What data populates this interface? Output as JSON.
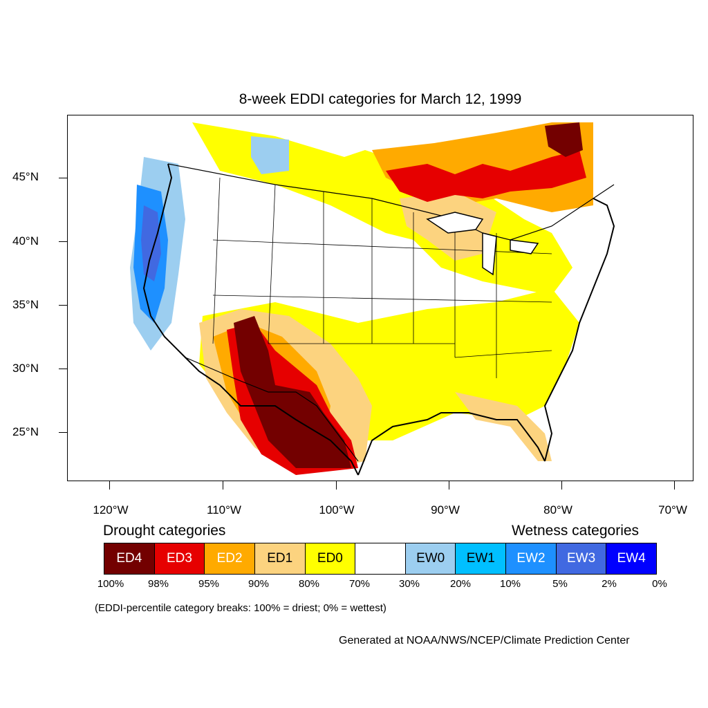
{
  "title": "8-week EDDI categories for March 12, 1999",
  "lat_labels": [
    "45°N",
    "40°N",
    "35°N",
    "30°N",
    "25°N"
  ],
  "lon_labels": [
    "120°W",
    "110°W",
    "100°W",
    "90°W",
    "80°W",
    "70°W"
  ],
  "legend": {
    "drought_heading": "Drought categories",
    "wetness_heading": "Wetness categories",
    "categories": [
      {
        "label": "ED4",
        "color": "#730000",
        "text_color": "#ffffff"
      },
      {
        "label": "ED3",
        "color": "#e60000",
        "text_color": "#ffffff"
      },
      {
        "label": "ED2",
        "color": "#ffaa00",
        "text_color": "#ffffff"
      },
      {
        "label": "ED1",
        "color": "#fcd37f",
        "text_color": "#000000"
      },
      {
        "label": "ED0",
        "color": "#ffff00",
        "text_color": "#000000"
      },
      {
        "label": "",
        "color": "#ffffff",
        "text_color": "#000000"
      },
      {
        "label": "EW0",
        "color": "#9ccef0",
        "text_color": "#000000"
      },
      {
        "label": "EW1",
        "color": "#00bfff",
        "text_color": "#000000"
      },
      {
        "label": "EW2",
        "color": "#1e90ff",
        "text_color": "#ffffff"
      },
      {
        "label": "EW3",
        "color": "#4169e1",
        "text_color": "#ffffff"
      },
      {
        "label": "EW4",
        "color": "#0000ff",
        "text_color": "#ffffff"
      }
    ],
    "breaks": [
      "100%",
      "98%",
      "95%",
      "90%",
      "80%",
      "70%",
      "30%",
      "20%",
      "10%",
      "5%",
      "2%",
      "0%"
    ]
  },
  "note": "(EDDI-percentile category breaks: 100% = driest; 0% = wettest)",
  "credit": "Generated at NOAA/NWS/NCEP/Climate Prediction Center"
}
